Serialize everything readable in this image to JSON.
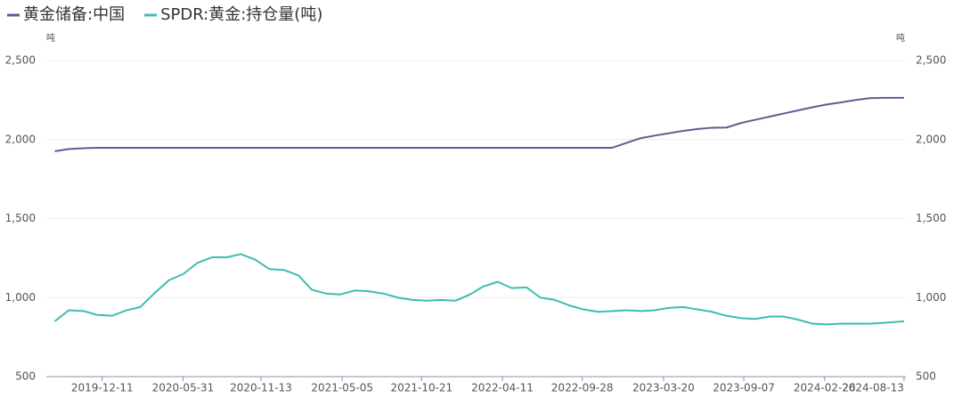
{
  "chart_data": {
    "type": "line",
    "y_unit": "吨",
    "y2_unit": "吨",
    "x": [
      "2019-09-01",
      "2019-10-01",
      "2019-11-01",
      "2019-12-01",
      "2020-01-01",
      "2020-02-01",
      "2020-03-01",
      "2020-04-01",
      "2020-05-01",
      "2020-06-01",
      "2020-07-01",
      "2020-08-01",
      "2020-09-01",
      "2020-10-01",
      "2020-11-01",
      "2020-12-01",
      "2021-01-01",
      "2021-02-01",
      "2021-03-01",
      "2021-04-01",
      "2021-05-01",
      "2021-06-01",
      "2021-07-01",
      "2021-08-01",
      "2021-09-01",
      "2021-10-01",
      "2021-11-01",
      "2021-12-01",
      "2022-01-01",
      "2022-02-01",
      "2022-03-01",
      "2022-04-01",
      "2022-05-01",
      "2022-06-01",
      "2022-07-01",
      "2022-08-01",
      "2022-09-01",
      "2022-10-01",
      "2022-11-01",
      "2022-12-01",
      "2023-01-01",
      "2023-02-01",
      "2023-03-01",
      "2023-04-01",
      "2023-05-01",
      "2023-06-01",
      "2023-07-01",
      "2023-08-01",
      "2023-09-01",
      "2023-10-01",
      "2023-11-01",
      "2023-12-01",
      "2024-01-01",
      "2024-02-01",
      "2024-03-01",
      "2024-04-01",
      "2024-05-01",
      "2024-06-01",
      "2024-07-01",
      "2024-08-13"
    ],
    "series": [
      {
        "name": "黄金储备:中国",
        "color": "#5b5e96",
        "values": [
          1926,
          1940,
          1945,
          1948,
          1948,
          1948,
          1948,
          1948,
          1948,
          1948,
          1948,
          1948,
          1948,
          1948,
          1948,
          1948,
          1948,
          1948,
          1948,
          1948,
          1948,
          1948,
          1948,
          1948,
          1948,
          1948,
          1948,
          1948,
          1948,
          1948,
          1948,
          1948,
          1948,
          1948,
          1948,
          1948,
          1948,
          1948,
          1948,
          1948,
          1980,
          2010,
          2025,
          2040,
          2055,
          2067,
          2075,
          2076,
          2105,
          2125,
          2145,
          2165,
          2185,
          2205,
          2222,
          2235,
          2250,
          2262,
          2264,
          2264
        ]
      },
      {
        "name": "SPDR:黄金:持仓量(吨)",
        "color": "#3dbdb0",
        "axis": "y2",
        "values": [
          850,
          920,
          915,
          890,
          885,
          920,
          940,
          1030,
          1110,
          1150,
          1220,
          1255,
          1255,
          1275,
          1240,
          1180,
          1175,
          1140,
          1050,
          1025,
          1020,
          1045,
          1040,
          1025,
          1000,
          985,
          980,
          985,
          980,
          1020,
          1070,
          1100,
          1060,
          1065,
          1000,
          985,
          950,
          925,
          910,
          915,
          920,
          915,
          920,
          935,
          940,
          925,
          910,
          885,
          870,
          865,
          880,
          880,
          860,
          835,
          830,
          835,
          835,
          835,
          840,
          850
        ]
      }
    ],
    "xlim": [
      "2019-08-14",
      "2024-08-17"
    ],
    "xticks": [
      "2019-12-11",
      "2020-05-31",
      "2020-11-13",
      "2021-05-05",
      "2021-10-21",
      "2022-04-11",
      "2022-09-28",
      "2023-03-20",
      "2023-09-07",
      "2024-02-26",
      "2024-08-13"
    ],
    "ylim": [
      500,
      2500
    ],
    "yticks": [
      500,
      {
        "value": 1000,
        "label": "1,000"
      },
      {
        "value": 1500,
        "label": "1,500"
      },
      {
        "value": 2000,
        "label": "2,000"
      },
      {
        "value": 2500,
        "label": "2,500"
      }
    ],
    "y2lim": [
      500,
      2500
    ],
    "y2ticks": [
      500,
      {
        "value": 1000,
        "label": "1,000"
      },
      {
        "value": 1500,
        "label": "1,500"
      },
      {
        "value": 2000,
        "label": "2,000"
      },
      {
        "value": 2500,
        "label": "2,500"
      }
    ],
    "grid": true
  }
}
